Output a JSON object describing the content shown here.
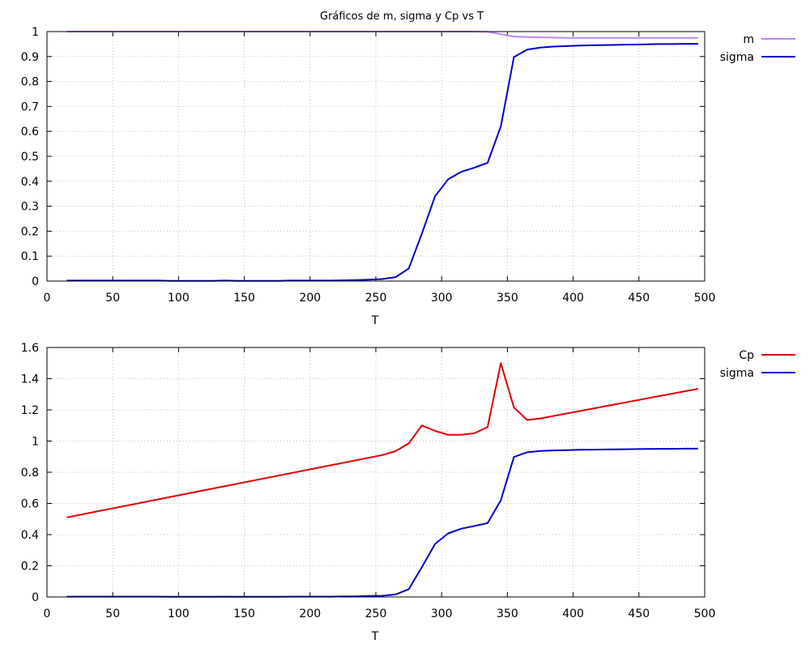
{
  "figure_title": "Gráficos de m, sigma y Cp vs T",
  "chart_data": [
    {
      "type": "line",
      "title": "Gráficos de m, sigma y Cp vs T",
      "xlabel": "T",
      "ylabel": "",
      "xlim": [
        0,
        500
      ],
      "ylim": [
        0,
        1
      ],
      "xticks": [
        0,
        50,
        100,
        150,
        200,
        250,
        300,
        350,
        400,
        450,
        500
      ],
      "yticks": [
        0,
        0.1,
        0.2,
        0.3,
        0.4,
        0.5,
        0.6,
        0.7,
        0.8,
        0.9,
        1
      ],
      "xtick_labels": [
        "0",
        "50",
        "100",
        "150",
        "200",
        "250",
        "300",
        "350",
        "400",
        "450",
        "500"
      ],
      "ytick_labels": [
        "0",
        "0.1",
        "0.2",
        "0.3",
        "0.4",
        "0.5",
        "0.6",
        "0.7",
        "0.8",
        "0.9",
        "1"
      ],
      "grid": true,
      "legend_position": "outside-top-right",
      "series": [
        {
          "name": "m",
          "color": "#bb88ee",
          "x": [
            15,
            25,
            35,
            45,
            55,
            65,
            75,
            85,
            95,
            105,
            115,
            125,
            135,
            145,
            155,
            165,
            175,
            185,
            195,
            205,
            215,
            225,
            235,
            245,
            255,
            265,
            275,
            285,
            295,
            305,
            315,
            325,
            335,
            345,
            355,
            365,
            375,
            385,
            395,
            405,
            415,
            425,
            435,
            445,
            455,
            465,
            475,
            485,
            495
          ],
          "y": [
            1,
            1,
            1,
            1,
            1,
            1,
            1,
            1,
            1,
            1,
            1,
            1,
            1,
            1,
            1,
            1,
            1,
            1,
            1,
            1,
            1,
            1,
            1,
            1,
            1,
            1,
            1,
            1,
            1,
            1,
            1,
            1,
            0.999,
            0.99,
            0.98,
            0.978,
            0.977,
            0.976,
            0.975,
            0.975,
            0.975,
            0.975,
            0.975,
            0.975,
            0.975,
            0.975,
            0.975,
            0.975,
            0.975
          ]
        },
        {
          "name": "sigma",
          "color": "#0000cc",
          "x": [
            15,
            25,
            35,
            45,
            55,
            65,
            75,
            85,
            95,
            105,
            115,
            125,
            135,
            145,
            155,
            165,
            175,
            185,
            195,
            205,
            215,
            225,
            235,
            245,
            255,
            265,
            275,
            285,
            295,
            305,
            315,
            325,
            335,
            345,
            355,
            365,
            375,
            385,
            395,
            405,
            415,
            425,
            435,
            445,
            455,
            465,
            475,
            485,
            495
          ],
          "y": [
            0.002,
            0.002,
            0.002,
            0.002,
            0.002,
            0.002,
            0.002,
            0.002,
            0.001,
            0.001,
            0.001,
            0.001,
            0.002,
            0.001,
            0.001,
            0.001,
            0.001,
            0.002,
            0.002,
            0.002,
            0.002,
            0.003,
            0.004,
            0.006,
            0.008,
            0.016,
            0.05,
            0.19,
            0.34,
            0.408,
            0.438,
            0.455,
            0.474,
            0.62,
            0.898,
            0.928,
            0.936,
            0.94,
            0.942,
            0.944,
            0.945,
            0.946,
            0.947,
            0.948,
            0.949,
            0.95,
            0.95,
            0.951,
            0.951
          ]
        }
      ]
    },
    {
      "type": "line",
      "title": "",
      "xlabel": "T",
      "ylabel": "",
      "xlim": [
        0,
        500
      ],
      "ylim": [
        0,
        1.6
      ],
      "xticks": [
        0,
        50,
        100,
        150,
        200,
        250,
        300,
        350,
        400,
        450,
        500
      ],
      "yticks": [
        0,
        0.2,
        0.4,
        0.6,
        0.8,
        1,
        1.2,
        1.4,
        1.6
      ],
      "xtick_labels": [
        "0",
        "50",
        "100",
        "150",
        "200",
        "250",
        "300",
        "350",
        "400",
        "450",
        "500"
      ],
      "ytick_labels": [
        "0",
        "0.2",
        "0.4",
        "0.6",
        "0.8",
        "1",
        "1.2",
        "1.4",
        "1.6"
      ],
      "grid": true,
      "legend_position": "outside-top-right",
      "series": [
        {
          "name": "Cp",
          "color": "#dd0000",
          "x": [
            15,
            255,
            265,
            275,
            285,
            295,
            305,
            315,
            325,
            335,
            345,
            355,
            365,
            375,
            495
          ],
          "y": [
            0.51,
            0.91,
            0.935,
            0.985,
            1.1,
            1.065,
            1.04,
            1.04,
            1.05,
            1.09,
            1.5,
            1.215,
            1.135,
            1.145,
            1.335
          ]
        },
        {
          "name": "sigma",
          "color": "#0000cc",
          "x": [
            15,
            25,
            35,
            45,
            55,
            65,
            75,
            85,
            95,
            105,
            115,
            125,
            135,
            145,
            155,
            165,
            175,
            185,
            195,
            205,
            215,
            225,
            235,
            245,
            255,
            265,
            275,
            285,
            295,
            305,
            315,
            325,
            335,
            345,
            355,
            365,
            375,
            385,
            395,
            405,
            415,
            425,
            435,
            445,
            455,
            465,
            475,
            485,
            495
          ],
          "y": [
            0.002,
            0.002,
            0.002,
            0.002,
            0.002,
            0.002,
            0.002,
            0.002,
            0.001,
            0.001,
            0.001,
            0.001,
            0.002,
            0.001,
            0.001,
            0.001,
            0.001,
            0.002,
            0.002,
            0.002,
            0.002,
            0.003,
            0.004,
            0.006,
            0.008,
            0.016,
            0.05,
            0.19,
            0.34,
            0.408,
            0.438,
            0.455,
            0.474,
            0.62,
            0.898,
            0.928,
            0.936,
            0.94,
            0.942,
            0.944,
            0.945,
            0.946,
            0.947,
            0.948,
            0.949,
            0.95,
            0.95,
            0.951,
            0.951
          ]
        }
      ]
    }
  ]
}
